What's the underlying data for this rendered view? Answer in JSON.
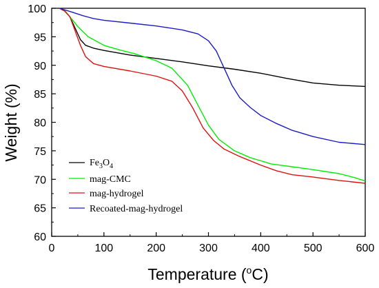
{
  "chart_data": {
    "type": "line",
    "xlabel": "Temperature (°C)",
    "xlabel_main": "Temperature (",
    "xlabel_unit": "o",
    "xlabel_end": "C)",
    "ylabel": "Weight (%)",
    "xlim": [
      0,
      600
    ],
    "ylim": [
      60,
      100
    ],
    "xticks": [
      0,
      100,
      200,
      300,
      400,
      500,
      600
    ],
    "yticks": [
      60,
      65,
      70,
      75,
      80,
      85,
      90,
      95,
      100
    ],
    "grid": false,
    "legend_position": "bottom-left",
    "series": [
      {
        "name": "Fe3O4",
        "label_base": "Fe",
        "label_sub1": "3",
        "label_mid": "O",
        "label_sub2": "4",
        "color": "#000000",
        "points": [
          [
            15,
            100
          ],
          [
            25,
            99.5
          ],
          [
            35,
            98.5
          ],
          [
            45,
            96.5
          ],
          [
            55,
            94.5
          ],
          [
            65,
            93.5
          ],
          [
            80,
            93
          ],
          [
            100,
            92.6
          ],
          [
            150,
            91.8
          ],
          [
            200,
            91.2
          ],
          [
            250,
            90.6
          ],
          [
            300,
            89.9
          ],
          [
            350,
            89.3
          ],
          [
            400,
            88.6
          ],
          [
            450,
            87.7
          ],
          [
            500,
            86.9
          ],
          [
            550,
            86.5
          ],
          [
            600,
            86.3
          ]
        ]
      },
      {
        "name": "mag-CMC",
        "label_base": "mag-CMC",
        "color": "#00ee00",
        "points": [
          [
            15,
            100
          ],
          [
            25,
            99.6
          ],
          [
            35,
            98.5
          ],
          [
            50,
            96.8
          ],
          [
            70,
            95
          ],
          [
            100,
            93.5
          ],
          [
            130,
            92.7
          ],
          [
            160,
            92
          ],
          [
            200,
            90.8
          ],
          [
            230,
            89.5
          ],
          [
            260,
            86.5
          ],
          [
            280,
            83
          ],
          [
            300,
            79.5
          ],
          [
            320,
            77
          ],
          [
            350,
            75
          ],
          [
            380,
            73.8
          ],
          [
            420,
            72.7
          ],
          [
            460,
            72.2
          ],
          [
            500,
            71.7
          ],
          [
            550,
            71
          ],
          [
            580,
            70.3
          ],
          [
            600,
            69.7
          ]
        ]
      },
      {
        "name": "mag-hydrogel",
        "label_base": "mag-hydrogel",
        "color": "#e01010",
        "points": [
          [
            15,
            100
          ],
          [
            25,
            99.5
          ],
          [
            35,
            98.5
          ],
          [
            45,
            96
          ],
          [
            55,
            93.5
          ],
          [
            65,
            91.5
          ],
          [
            80,
            90.3
          ],
          [
            100,
            89.8
          ],
          [
            150,
            89
          ],
          [
            200,
            88.1
          ],
          [
            230,
            87.2
          ],
          [
            250,
            85.5
          ],
          [
            270,
            82.5
          ],
          [
            290,
            79
          ],
          [
            310,
            76.8
          ],
          [
            330,
            75.3
          ],
          [
            360,
            74
          ],
          [
            400,
            72.5
          ],
          [
            430,
            71.5
          ],
          [
            460,
            70.8
          ],
          [
            500,
            70.4
          ],
          [
            550,
            69.8
          ],
          [
            600,
            69.3
          ]
        ]
      },
      {
        "name": "Recoated-mag-hydrogel",
        "label_base": "Recoated-mag-hydrogel",
        "color": "#1a1ac8",
        "points": [
          [
            15,
            100
          ],
          [
            40,
            99.3
          ],
          [
            60,
            98.7
          ],
          [
            80,
            98.2
          ],
          [
            100,
            97.9
          ],
          [
            150,
            97.4
          ],
          [
            200,
            96.9
          ],
          [
            250,
            96.2
          ],
          [
            280,
            95.5
          ],
          [
            300,
            94.3
          ],
          [
            315,
            92.5
          ],
          [
            330,
            89.5
          ],
          [
            345,
            86.5
          ],
          [
            360,
            84.3
          ],
          [
            380,
            82.6
          ],
          [
            400,
            81.2
          ],
          [
            430,
            79.8
          ],
          [
            460,
            78.6
          ],
          [
            500,
            77.5
          ],
          [
            550,
            76.5
          ],
          [
            600,
            76.1
          ]
        ]
      }
    ]
  }
}
